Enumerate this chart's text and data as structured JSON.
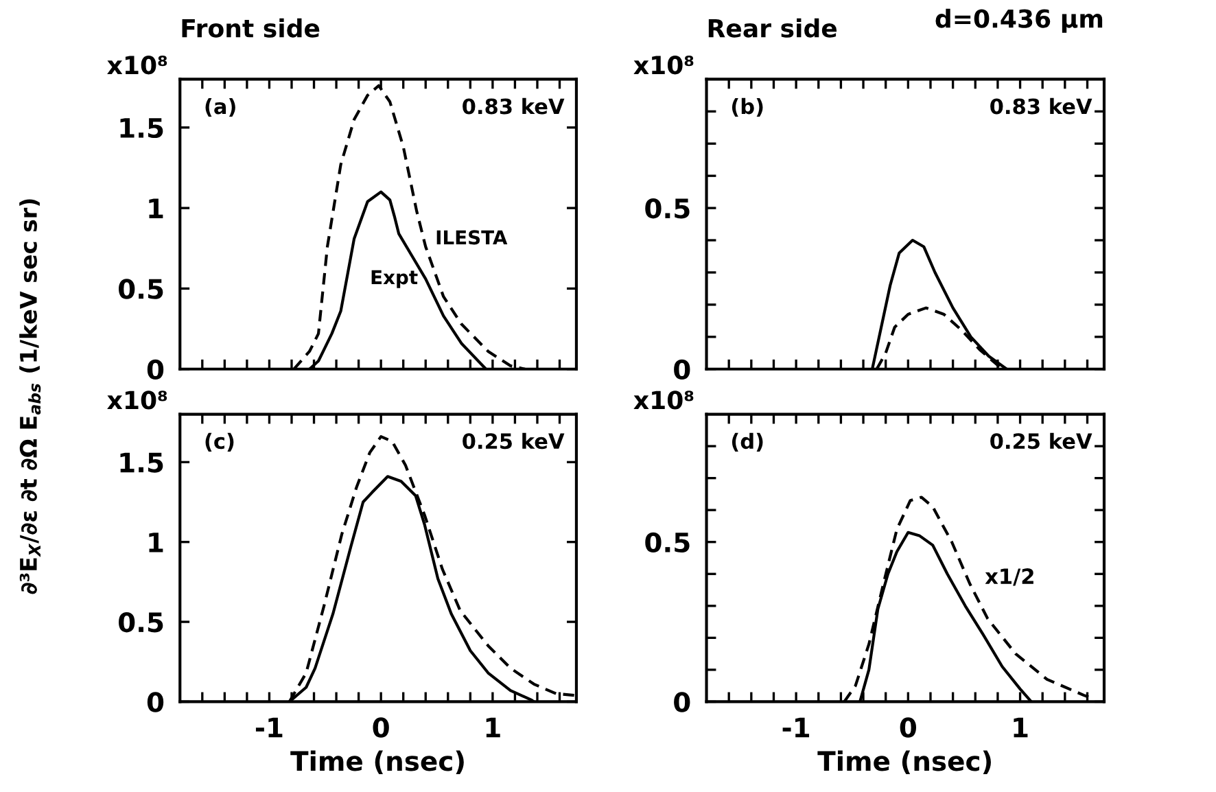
{
  "chart_data": [
    {
      "type": "line",
      "title": "Front side",
      "ylabel": "∂³E$_{X}$/∂ε ∂t ∂Ω E$_{abs}$ (1/keV sec sr)",
      "annotations": [
        "x10⁸",
        "(a)",
        "0.83 keV"
      ],
      "xlim": [
        -1.8,
        1.75
      ],
      "ylim": [
        0,
        1.8
      ],
      "tick_labels": "y",
      "xticks": [
        {
          "value": -1.6,
          "label": null
        },
        {
          "value": -1.4,
          "label": null
        },
        {
          "value": -1.2,
          "label": null
        },
        {
          "value": -1,
          "label": null
        },
        {
          "value": -0.8,
          "label": null
        },
        {
          "value": -0.6,
          "label": null
        },
        {
          "value": -0.4,
          "label": null
        },
        {
          "value": -0.2,
          "label": null
        },
        {
          "value": 0,
          "label": null
        },
        {
          "value": 0.2,
          "label": null
        },
        {
          "value": 0.4,
          "label": null
        },
        {
          "value": 0.6,
          "label": null
        },
        {
          "value": 0.8,
          "label": null
        },
        {
          "value": 1,
          "label": null
        },
        {
          "value": 1.2,
          "label": null
        },
        {
          "value": 1.4,
          "label": null
        },
        {
          "value": 1.6,
          "label": null
        }
      ],
      "yticks": [
        0,
        0.5,
        1,
        1.5
      ],
      "grid": false,
      "legend": false,
      "marker": "none",
      "series": [
        {
          "name": "ILESTA",
          "color": "#000000",
          "line_style": "dashed",
          "x": [
            -0.78,
            -0.64,
            -0.56,
            -0.48,
            -0.36,
            -0.24,
            -0.12,
            -0.02,
            0.08,
            0.2,
            0.32,
            0.4,
            0.56,
            0.72,
            0.96,
            1.16,
            1.29
          ],
          "values": [
            0,
            0.11,
            0.22,
            0.76,
            1.27,
            1.55,
            1.7,
            1.76,
            1.66,
            1.38,
            0.98,
            0.76,
            0.45,
            0.28,
            0.11,
            0.02,
            0
          ]
        },
        {
          "name": "Expt",
          "color": "#000000",
          "line_style": "solid",
          "x": [
            -0.64,
            -0.56,
            -0.44,
            -0.36,
            -0.24,
            -0.12,
            0,
            0.08,
            0.12,
            0.16,
            0.28,
            0.4,
            0.56,
            0.72,
            0.94
          ],
          "values": [
            0,
            0.05,
            0.22,
            0.36,
            0.81,
            1.04,
            1.1,
            1.05,
            0.95,
            0.84,
            0.7,
            0.56,
            0.33,
            0.16,
            0
          ]
        }
      ]
    },
    {
      "type": "line",
      "title": "Rear side",
      "annotations": [
        "d=0.436 μm",
        "x10⁸",
        "(b)",
        "0.83 keV"
      ],
      "xlim": [
        -1.8,
        1.75
      ],
      "ylim": [
        0,
        0.9
      ],
      "tick_labels": "y",
      "xticks": [
        {
          "value": -1.6,
          "label": null
        },
        {
          "value": -1.4,
          "label": null
        },
        {
          "value": -1.2,
          "label": null
        },
        {
          "value": -1,
          "label": null
        },
        {
          "value": -0.8,
          "label": null
        },
        {
          "value": -0.6,
          "label": null
        },
        {
          "value": -0.4,
          "label": null
        },
        {
          "value": -0.2,
          "label": null
        },
        {
          "value": 0,
          "label": null
        },
        {
          "value": 0.2,
          "label": null
        },
        {
          "value": 0.4,
          "label": null
        },
        {
          "value": 0.6,
          "label": null
        },
        {
          "value": 0.8,
          "label": null
        },
        {
          "value": 1,
          "label": null
        },
        {
          "value": 1.2,
          "label": null
        },
        {
          "value": 1.4,
          "label": null
        },
        {
          "value": 1.6,
          "label": null
        }
      ],
      "yticks": [
        0,
        {
          "value": 0.1,
          "label": null
        },
        {
          "value": 0.2,
          "label": null
        },
        {
          "value": 0.3,
          "label": null
        },
        {
          "value": 0.4,
          "label": null
        },
        0.5,
        {
          "value": 0.6,
          "label": null
        },
        {
          "value": 0.7,
          "label": null
        },
        {
          "value": 0.8,
          "label": null
        }
      ],
      "grid": false,
      "legend": false,
      "marker": "none",
      "series": [
        {
          "color": "#000000",
          "line_style": "dashed",
          "x": [
            -0.28,
            -0.2,
            -0.12,
            0,
            0.16,
            0.32,
            0.48,
            0.64,
            0.84
          ],
          "values": [
            0,
            0.05,
            0.13,
            0.17,
            0.19,
            0.17,
            0.12,
            0.06,
            0
          ]
        },
        {
          "color": "#000000",
          "line_style": "solid",
          "x": [
            -0.32,
            -0.24,
            -0.16,
            -0.08,
            0.04,
            0.14,
            0.24,
            0.4,
            0.56,
            0.72,
            0.88
          ],
          "values": [
            0,
            0.13,
            0.26,
            0.36,
            0.4,
            0.38,
            0.3,
            0.19,
            0.1,
            0.04,
            0
          ]
        }
      ]
    },
    {
      "type": "line",
      "xlabel": "Time (nsec)",
      "annotations": [
        "x10⁸",
        "(c)",
        "0.25 keV"
      ],
      "xlim": [
        -1.8,
        1.75
      ],
      "ylim": [
        0,
        1.8
      ],
      "xticks": [
        {
          "value": -1.6,
          "label": null
        },
        {
          "value": -1.4,
          "label": null
        },
        {
          "value": -1.2,
          "label": null
        },
        -1,
        {
          "value": -0.8,
          "label": null
        },
        {
          "value": -0.6,
          "label": null
        },
        {
          "value": -0.4,
          "label": null
        },
        {
          "value": -0.2,
          "label": null
        },
        0,
        {
          "value": 0.2,
          "label": null
        },
        {
          "value": 0.4,
          "label": null
        },
        {
          "value": 0.6,
          "label": null
        },
        {
          "value": 0.8,
          "label": null
        },
        1,
        {
          "value": 1.2,
          "label": null
        },
        {
          "value": 1.4,
          "label": null
        },
        {
          "value": 1.6,
          "label": null
        }
      ],
      "yticks": [
        0,
        0.5,
        1,
        1.5
      ],
      "grid": false,
      "legend": false,
      "marker": "none",
      "series": [
        {
          "color": "#000000",
          "line_style": "dashed",
          "x": [
            -0.82,
            -0.67,
            -0.51,
            -0.35,
            -0.22,
            -0.1,
            0,
            0.1,
            0.22,
            0.39,
            0.55,
            0.71,
            0.96,
            1.16,
            1.37,
            1.57,
            1.73
          ],
          "values": [
            0,
            0.18,
            0.6,
            1.05,
            1.34,
            1.56,
            1.66,
            1.63,
            1.48,
            1.17,
            0.83,
            0.57,
            0.35,
            0.21,
            0.11,
            0.05,
            0.04
          ]
        },
        {
          "color": "#000000",
          "line_style": "solid",
          "x": [
            -0.82,
            -0.67,
            -0.59,
            -0.43,
            -0.27,
            -0.16,
            -0.08,
            0.06,
            0.18,
            0.31,
            0.39,
            0.51,
            0.63,
            0.8,
            0.96,
            1.16,
            1.35,
            1.37
          ],
          "values": [
            0,
            0.09,
            0.21,
            0.55,
            0.97,
            1.25,
            1.31,
            1.41,
            1.38,
            1.29,
            1.11,
            0.77,
            0.55,
            0.32,
            0.18,
            0.07,
            0.01,
            0
          ]
        }
      ]
    },
    {
      "type": "line",
      "xlabel": "Time (nsec)",
      "annotations": [
        "x10⁸",
        "(d)",
        "0.25 keV",
        "x1/2"
      ],
      "xlim": [
        -1.8,
        1.75
      ],
      "ylim": [
        0,
        0.9
      ],
      "xticks": [
        {
          "value": -1.6,
          "label": null
        },
        {
          "value": -1.4,
          "label": null
        },
        {
          "value": -1.2,
          "label": null
        },
        -1,
        {
          "value": -0.8,
          "label": null
        },
        {
          "value": -0.6,
          "label": null
        },
        {
          "value": -0.4,
          "label": null
        },
        {
          "value": -0.2,
          "label": null
        },
        0,
        {
          "value": 0.2,
          "label": null
        },
        {
          "value": 0.4,
          "label": null
        },
        {
          "value": 0.6,
          "label": null
        },
        {
          "value": 0.8,
          "label": null
        },
        1,
        {
          "value": 1.2,
          "label": null
        },
        {
          "value": 1.4,
          "label": null
        },
        {
          "value": 1.6,
          "label": null
        }
      ],
      "yticks": [
        0,
        {
          "value": 0.1,
          "label": null
        },
        {
          "value": 0.2,
          "label": null
        },
        {
          "value": 0.3,
          "label": null
        },
        {
          "value": 0.4,
          "label": null
        },
        0.5,
        {
          "value": 0.6,
          "label": null
        },
        {
          "value": 0.7,
          "label": null
        },
        {
          "value": 0.8,
          "label": null
        }
      ],
      "grid": false,
      "legend": false,
      "marker": "none",
      "series": [
        {
          "color": "#000000",
          "line_style": "dashed",
          "x": [
            -0.57,
            -0.47,
            -0.35,
            -0.22,
            -0.1,
            0.02,
            0.12,
            0.22,
            0.39,
            0.55,
            0.71,
            0.96,
            1.24,
            1.57,
            1.65
          ],
          "values": [
            0,
            0.05,
            0.18,
            0.37,
            0.54,
            0.63,
            0.64,
            0.61,
            0.5,
            0.37,
            0.26,
            0.15,
            0.07,
            0.02,
            0.01
          ]
        },
        {
          "color": "#000000",
          "line_style": "solid",
          "x": [
            -0.43,
            -0.35,
            -0.27,
            -0.18,
            -0.1,
            0,
            0.1,
            0.22,
            0.35,
            0.51,
            0.67,
            0.84,
            1.0,
            1.1
          ],
          "values": [
            0,
            0.1,
            0.29,
            0.4,
            0.47,
            0.53,
            0.52,
            0.49,
            0.4,
            0.3,
            0.21,
            0.11,
            0.04,
            0
          ]
        }
      ]
    }
  ]
}
